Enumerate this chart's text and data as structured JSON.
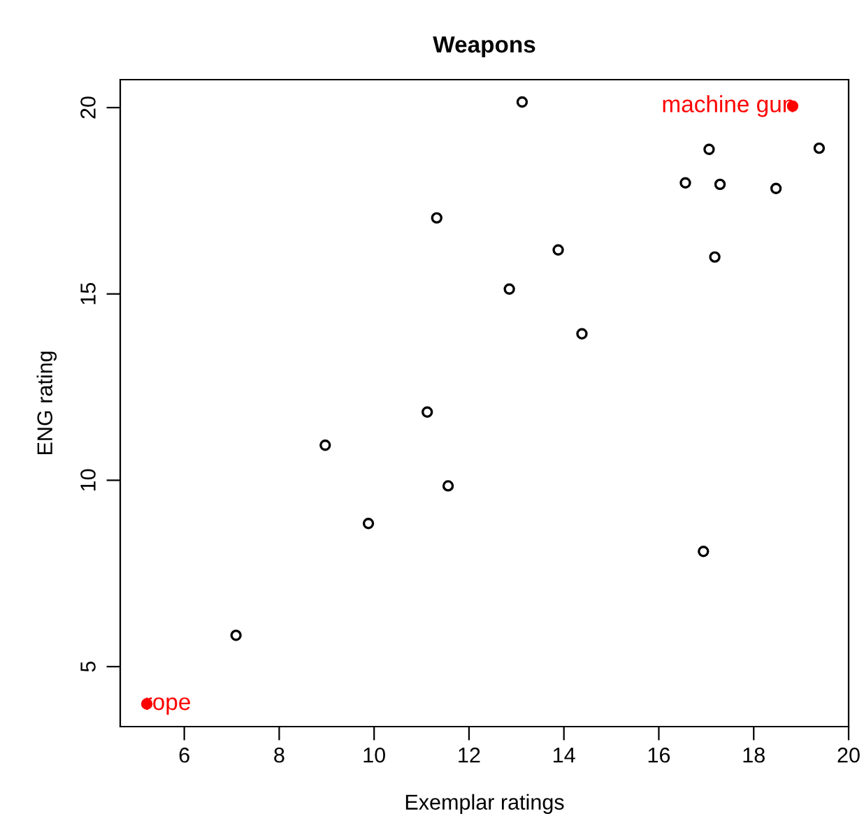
{
  "chart_data": {
    "type": "scatter",
    "title": "Weapons",
    "xlabel": "Exemplar ratings",
    "ylabel": "ENG rating",
    "xlim": [
      4.65,
      20
    ],
    "ylim": [
      3.39,
      20.75
    ],
    "xticks": [
      6,
      8,
      10,
      12,
      14,
      16,
      18,
      20
    ],
    "yticks": [
      5,
      10,
      15,
      20
    ],
    "grid": false,
    "legend": false,
    "marker": "circle",
    "series": [
      {
        "color": "#000000",
        "x": [
          13.12,
          11.32,
          12.85,
          11.12,
          8.97,
          9.88,
          11.56,
          7.09,
          17.06,
          19.38,
          16.56,
          17.29,
          18.47,
          13.88,
          17.18,
          14.38,
          16.94
        ],
        "values": [
          20.15,
          17.04,
          15.13,
          11.83,
          10.94,
          8.84,
          9.85,
          5.84,
          18.88,
          18.91,
          17.98,
          17.94,
          17.83,
          16.18,
          15.99,
          13.93,
          8.09
        ]
      },
      {
        "color": "#ff0000",
        "x": [
          5.21,
          18.82
        ],
        "values": [
          4.0,
          20.04
        ]
      }
    ],
    "annotations": [
      {
        "text": "rope",
        "x": 5.21,
        "y": 4.0
      },
      {
        "text": "machine gun",
        "x": 18.82,
        "y": 20.04
      }
    ]
  }
}
